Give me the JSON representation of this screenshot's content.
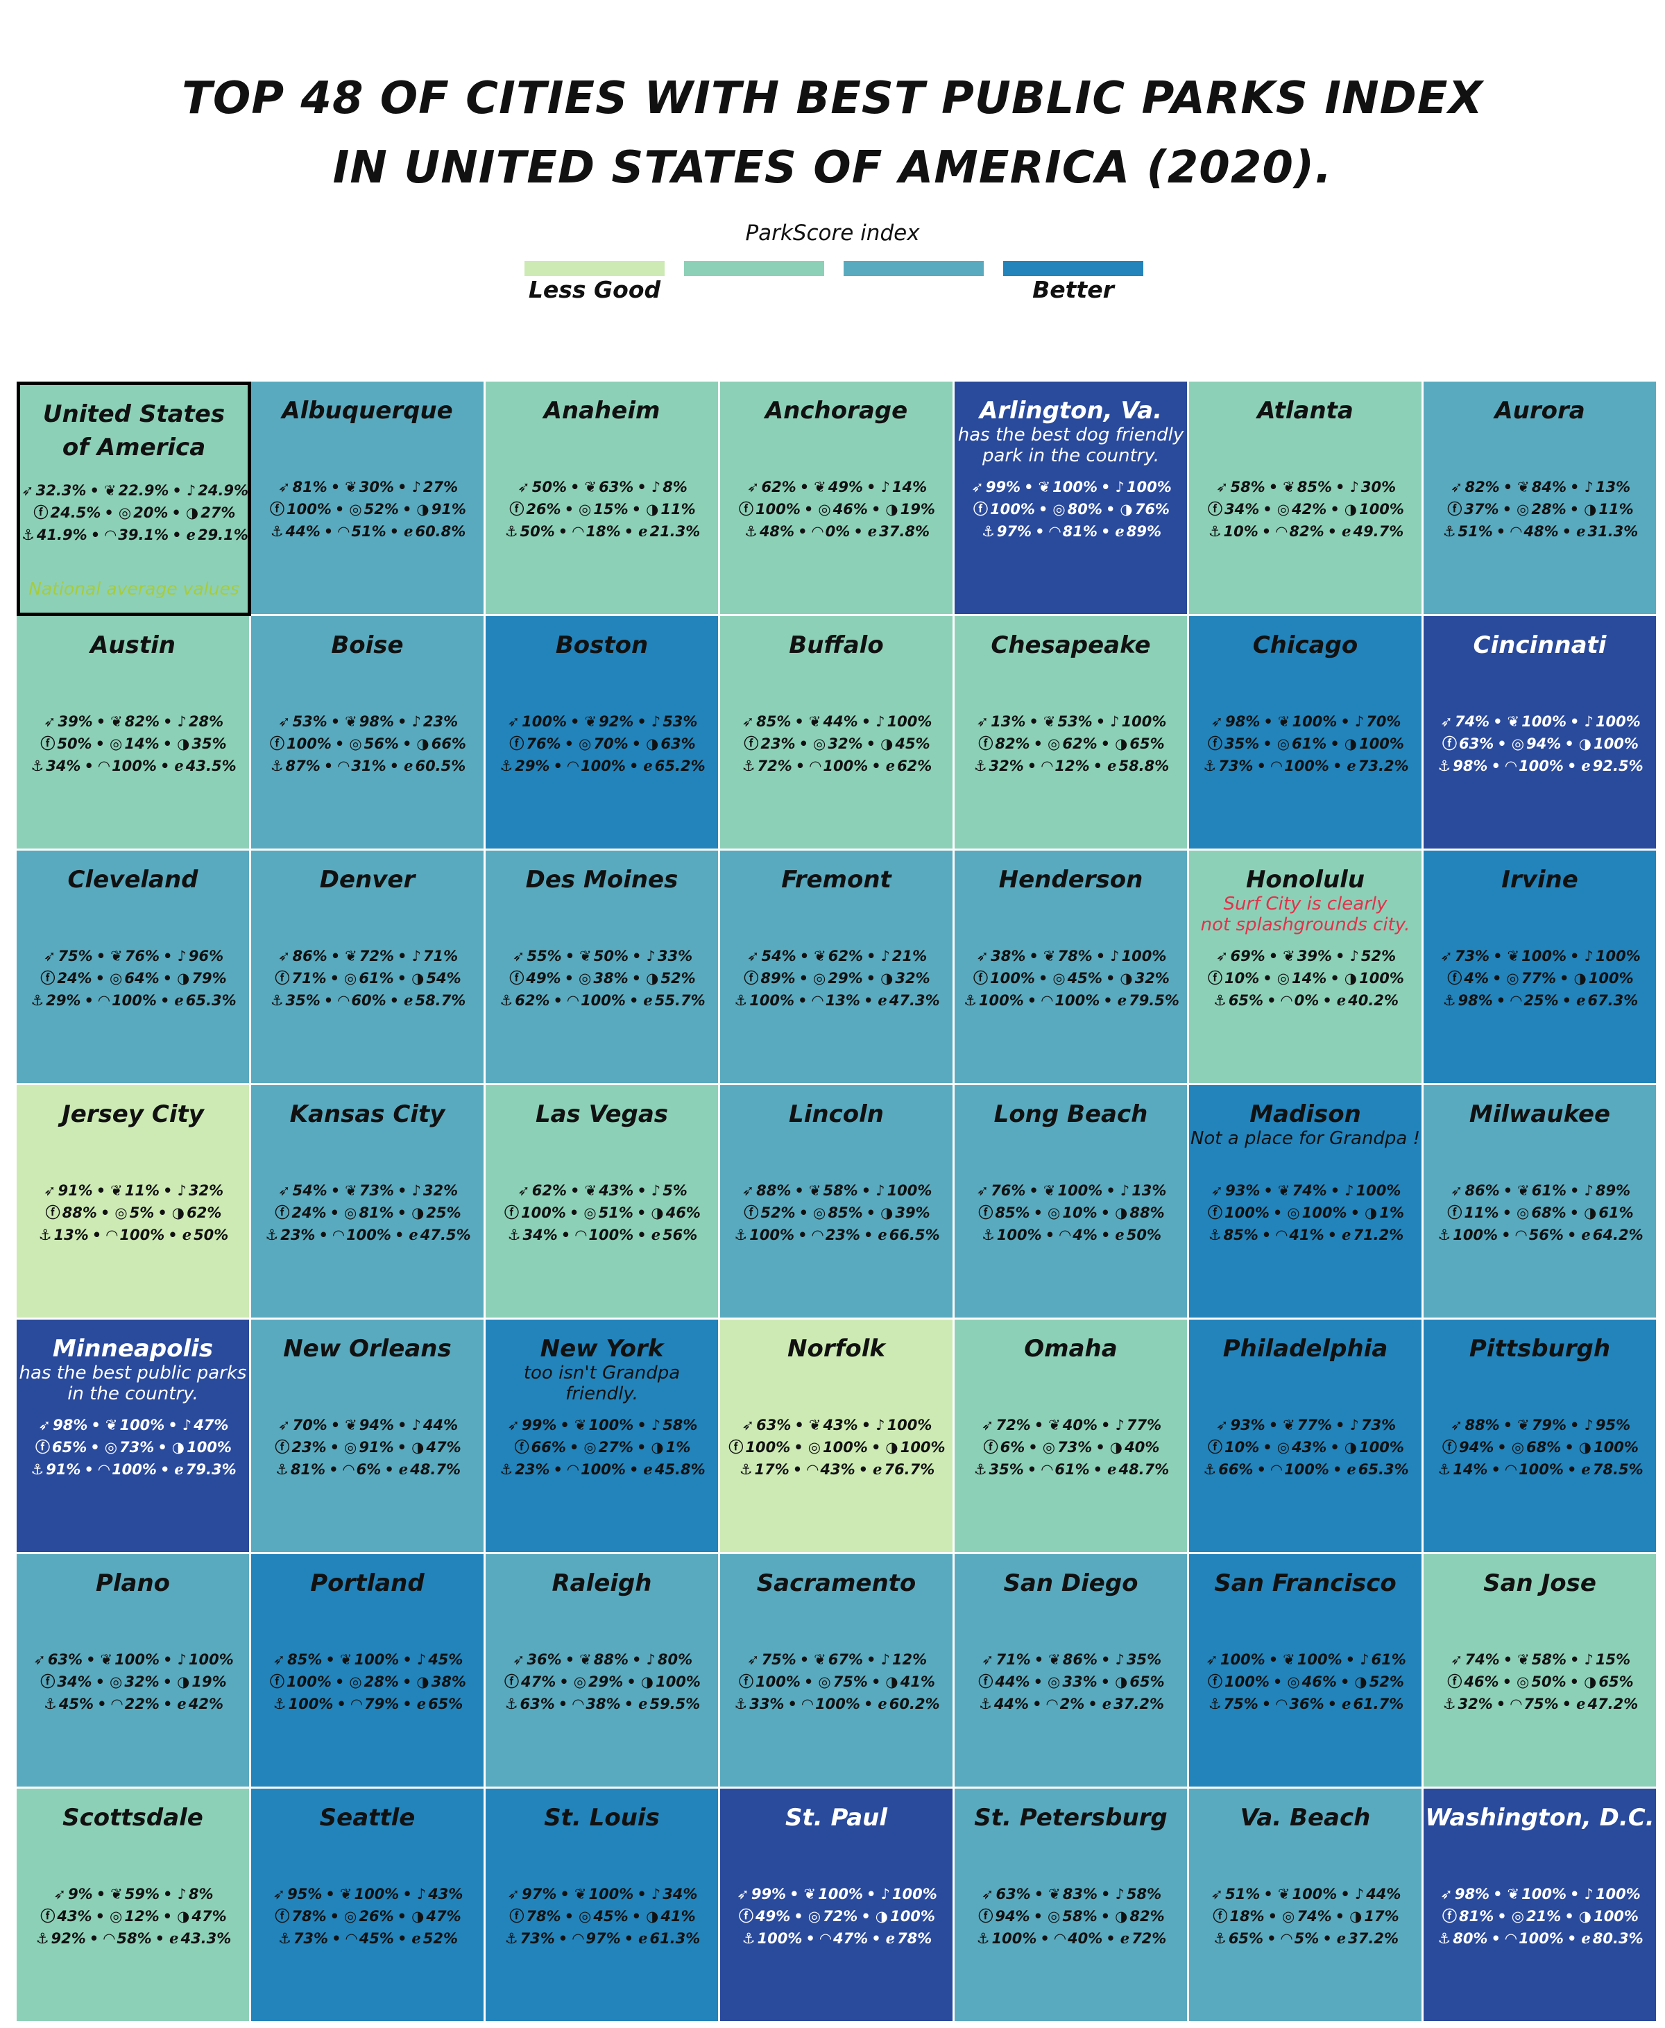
{
  "title": {
    "line1": "TOP 48  OF CITIES WITH BEST PUBLIC PARKS INDEX",
    "line2": "IN UNITED STATES OF AMERICA (2020)."
  },
  "legend": {
    "title": "ParkScore index",
    "low_label": "Less Good",
    "high_label": "Better",
    "colors": [
      "#cdeab5",
      "#8dd0b8",
      "#5aaabf",
      "#2384bb",
      "#2a4a9c"
    ]
  },
  "icons": [
    "rocket-icon",
    "twitter-icon",
    "tiktok-icon",
    "facebook-icon",
    "instagram-icon",
    "github-icon",
    "docker-icon",
    "android-icon",
    "ie-icon"
  ],
  "chart_data": {
    "type": "heatmap",
    "title": "TOP 48  OF CITIES WITH BEST PUBLIC PARKS INDEX IN UNITED STATES OF AMERICA (2020).",
    "legend_title": "ParkScore index",
    "legend_levels": [
      "Less Good",
      "",
      "",
      "Better"
    ],
    "columns": 7,
    "rows": 7,
    "tiles": [
      {
        "name": "United States\nof America",
        "level": 2,
        "values": [
          "32.3%",
          "22.9%",
          "24.9%",
          "24.5%",
          "20%",
          "27%",
          "41.9%",
          "39.1%",
          "29.1%"
        ],
        "footnote": "National average values",
        "national": true
      },
      {
        "name": "Albuquerque",
        "level": 3,
        "values": [
          "81%",
          "30%",
          "27%",
          "100%",
          "52%",
          "91%",
          "44%",
          "51%",
          "60.8%"
        ]
      },
      {
        "name": "Anaheim",
        "level": 2,
        "values": [
          "50%",
          "63%",
          "8%",
          "26%",
          "15%",
          "11%",
          "50%",
          "18%",
          "21.3%"
        ]
      },
      {
        "name": "Anchorage",
        "level": 2,
        "values": [
          "62%",
          "49%",
          "14%",
          "100%",
          "46%",
          "19%",
          "48%",
          "0%",
          "37.8%"
        ]
      },
      {
        "name": "Arlington, Va.",
        "level": 5,
        "note": "has the best dog friendly\npark in the country.",
        "note_color": "#ffffff",
        "values": [
          "99%",
          "100%",
          "100%",
          "100%",
          "80%",
          "76%",
          "97%",
          "81%",
          "89%"
        ]
      },
      {
        "name": "Atlanta",
        "level": 2,
        "values": [
          "58%",
          "85%",
          "30%",
          "34%",
          "42%",
          "100%",
          "10%",
          "82%",
          "49.7%"
        ]
      },
      {
        "name": "Aurora",
        "level": 3,
        "values": [
          "82%",
          "84%",
          "13%",
          "37%",
          "28%",
          "11%",
          "51%",
          "48%",
          "31.3%"
        ]
      },
      {
        "name": "Austin",
        "level": 2,
        "values": [
          "39%",
          "82%",
          "28%",
          "50%",
          "14%",
          "35%",
          "34%",
          "100%",
          "43.5%"
        ]
      },
      {
        "name": "Boise",
        "level": 3,
        "values": [
          "53%",
          "98%",
          "23%",
          "100%",
          "56%",
          "66%",
          "87%",
          "31%",
          "60.5%"
        ]
      },
      {
        "name": "Boston",
        "level": 4,
        "values": [
          "100%",
          "92%",
          "53%",
          "76%",
          "70%",
          "63%",
          "29%",
          "100%",
          "65.2%"
        ]
      },
      {
        "name": "Buffalo",
        "level": 2,
        "values": [
          "85%",
          "44%",
          "100%",
          "23%",
          "32%",
          "45%",
          "72%",
          "100%",
          "62%"
        ]
      },
      {
        "name": "Chesapeake",
        "level": 2,
        "values": [
          "13%",
          "53%",
          "100%",
          "82%",
          "62%",
          "65%",
          "32%",
          "12%",
          "58.8%"
        ]
      },
      {
        "name": "Chicago",
        "level": 4,
        "values": [
          "98%",
          "100%",
          "70%",
          "35%",
          "61%",
          "100%",
          "73%",
          "100%",
          "73.2%"
        ]
      },
      {
        "name": "Cincinnati",
        "level": 5,
        "values": [
          "74%",
          "100%",
          "100%",
          "63%",
          "94%",
          "100%",
          "98%",
          "100%",
          "92.5%"
        ]
      },
      {
        "name": "Cleveland",
        "level": 3,
        "values": [
          "75%",
          "76%",
          "96%",
          "24%",
          "64%",
          "79%",
          "29%",
          "100%",
          "65.3%"
        ]
      },
      {
        "name": "Denver",
        "level": 3,
        "values": [
          "86%",
          "72%",
          "71%",
          "71%",
          "61%",
          "54%",
          "35%",
          "60%",
          "58.7%"
        ]
      },
      {
        "name": "Des Moines",
        "level": 3,
        "values": [
          "55%",
          "50%",
          "33%",
          "49%",
          "38%",
          "52%",
          "62%",
          "100%",
          "55.7%"
        ]
      },
      {
        "name": "Fremont",
        "level": 3,
        "values": [
          "54%",
          "62%",
          "21%",
          "89%",
          "29%",
          "32%",
          "100%",
          "13%",
          "47.3%"
        ]
      },
      {
        "name": "Henderson",
        "level": 3,
        "values": [
          "38%",
          "78%",
          "100%",
          "100%",
          "45%",
          "32%",
          "100%",
          "100%",
          "79.5%"
        ]
      },
      {
        "name": "Honolulu",
        "level": 2,
        "note": "Surf City is clearly\nnot splashgrounds city.",
        "note_color": "#e0334a",
        "values": [
          "69%",
          "39%",
          "52%",
          "10%",
          "14%",
          "100%",
          "65%",
          "0%",
          "40.2%"
        ]
      },
      {
        "name": "Irvine",
        "level": 4,
        "values": [
          "73%",
          "100%",
          "100%",
          "4%",
          "77%",
          "100%",
          "98%",
          "25%",
          "67.3%"
        ]
      },
      {
        "name": "Jersey City",
        "level": 1,
        "values": [
          "91%",
          "11%",
          "32%",
          "88%",
          "5%",
          "62%",
          "13%",
          "100%",
          "50%"
        ]
      },
      {
        "name": "Kansas City",
        "level": 3,
        "values": [
          "54%",
          "73%",
          "32%",
          "24%",
          "81%",
          "25%",
          "23%",
          "100%",
          "47.5%"
        ]
      },
      {
        "name": "Las Vegas",
        "level": 2,
        "values": [
          "62%",
          "43%",
          "5%",
          "100%",
          "51%",
          "46%",
          "34%",
          "100%",
          "56%"
        ]
      },
      {
        "name": "Lincoln",
        "level": 3,
        "values": [
          "88%",
          "58%",
          "100%",
          "52%",
          "85%",
          "39%",
          "100%",
          "23%",
          "66.5%"
        ]
      },
      {
        "name": "Long Beach",
        "level": 3,
        "values": [
          "76%",
          "100%",
          "13%",
          "85%",
          "10%",
          "88%",
          "100%",
          "4%",
          "50%"
        ]
      },
      {
        "name": "Madison",
        "level": 4,
        "note": "Not a place for Grandpa !",
        "note_color": "#111111",
        "values": [
          "93%",
          "74%",
          "100%",
          "100%",
          "100%",
          "1%",
          "85%",
          "41%",
          "71.2%"
        ]
      },
      {
        "name": "Milwaukee",
        "level": 3,
        "values": [
          "86%",
          "61%",
          "89%",
          "11%",
          "68%",
          "61%",
          "100%",
          "56%",
          "64.2%"
        ]
      },
      {
        "name": "Minneapolis",
        "level": 5,
        "note": "has the best public parks\nin the country.",
        "note_color": "#ffffff",
        "values": [
          "98%",
          "100%",
          "47%",
          "65%",
          "73%",
          "100%",
          "91%",
          "100%",
          "79.3%"
        ]
      },
      {
        "name": "New Orleans",
        "level": 3,
        "values": [
          "70%",
          "94%",
          "44%",
          "23%",
          "91%",
          "47%",
          "81%",
          "6%",
          "48.7%"
        ]
      },
      {
        "name": "New York",
        "level": 4,
        "note": "too isn't Grandpa\nfriendly.",
        "note_color": "#111111",
        "values": [
          "99%",
          "100%",
          "58%",
          "66%",
          "27%",
          "1%",
          "23%",
          "100%",
          "45.8%"
        ]
      },
      {
        "name": "Norfolk",
        "level": 1,
        "values": [
          "63%",
          "43%",
          "100%",
          "100%",
          "100%",
          "100%",
          "17%",
          "43%",
          "76.7%"
        ]
      },
      {
        "name": "Omaha",
        "level": 2,
        "values": [
          "72%",
          "40%",
          "77%",
          "6%",
          "73%",
          "40%",
          "35%",
          "61%",
          "48.7%"
        ]
      },
      {
        "name": "Philadelphia",
        "level": 4,
        "values": [
          "93%",
          "77%",
          "73%",
          "10%",
          "43%",
          "100%",
          "66%",
          "100%",
          "65.3%"
        ]
      },
      {
        "name": "Pittsburgh",
        "level": 4,
        "values": [
          "88%",
          "79%",
          "95%",
          "94%",
          "68%",
          "100%",
          "14%",
          "100%",
          "78.5%"
        ]
      },
      {
        "name": "Plano",
        "level": 3,
        "values": [
          "63%",
          "100%",
          "100%",
          "34%",
          "32%",
          "19%",
          "45%",
          "22%",
          "42%"
        ]
      },
      {
        "name": "Portland",
        "level": 4,
        "values": [
          "85%",
          "100%",
          "45%",
          "100%",
          "28%",
          "38%",
          "100%",
          "79%",
          "65%"
        ]
      },
      {
        "name": "Raleigh",
        "level": 3,
        "values": [
          "36%",
          "88%",
          "80%",
          "47%",
          "29%",
          "100%",
          "63%",
          "38%",
          "59.5%"
        ]
      },
      {
        "name": "Sacramento",
        "level": 3,
        "values": [
          "75%",
          "67%",
          "12%",
          "100%",
          "75%",
          "41%",
          "33%",
          "100%",
          "60.2%"
        ]
      },
      {
        "name": "San Diego",
        "level": 3,
        "values": [
          "71%",
          "86%",
          "35%",
          "44%",
          "33%",
          "65%",
          "44%",
          "2%",
          "37.2%"
        ]
      },
      {
        "name": "San Francisco",
        "level": 4,
        "values": [
          "100%",
          "100%",
          "61%",
          "100%",
          "46%",
          "52%",
          "75%",
          "36%",
          "61.7%"
        ]
      },
      {
        "name": "San Jose",
        "level": 2,
        "values": [
          "74%",
          "58%",
          "15%",
          "46%",
          "50%",
          "65%",
          "32%",
          "75%",
          "47.2%"
        ]
      },
      {
        "name": "Scottsdale",
        "level": 2,
        "values": [
          "9%",
          "59%",
          "8%",
          "43%",
          "12%",
          "47%",
          "92%",
          "58%",
          "43.3%"
        ]
      },
      {
        "name": "Seattle",
        "level": 4,
        "values": [
          "95%",
          "100%",
          "43%",
          "78%",
          "26%",
          "47%",
          "73%",
          "45%",
          "52%"
        ]
      },
      {
        "name": "St. Louis",
        "level": 4,
        "values": [
          "97%",
          "100%",
          "34%",
          "78%",
          "45%",
          "41%",
          "73%",
          "97%",
          "61.3%"
        ]
      },
      {
        "name": "St. Paul",
        "level": 5,
        "values": [
          "99%",
          "100%",
          "100%",
          "49%",
          "72%",
          "100%",
          "100%",
          "47%",
          "78%"
        ]
      },
      {
        "name": "St. Petersburg",
        "level": 3,
        "values": [
          "63%",
          "83%",
          "58%",
          "94%",
          "58%",
          "82%",
          "100%",
          "40%",
          "72%"
        ]
      },
      {
        "name": "Va. Beach",
        "level": 3,
        "values": [
          "51%",
          "100%",
          "44%",
          "18%",
          "74%",
          "17%",
          "65%",
          "5%",
          "37.2%"
        ]
      },
      {
        "name": "Washington, D.C.",
        "level": 5,
        "values": [
          "98%",
          "100%",
          "100%",
          "81%",
          "21%",
          "100%",
          "80%",
          "100%",
          "80.3%"
        ]
      }
    ]
  }
}
